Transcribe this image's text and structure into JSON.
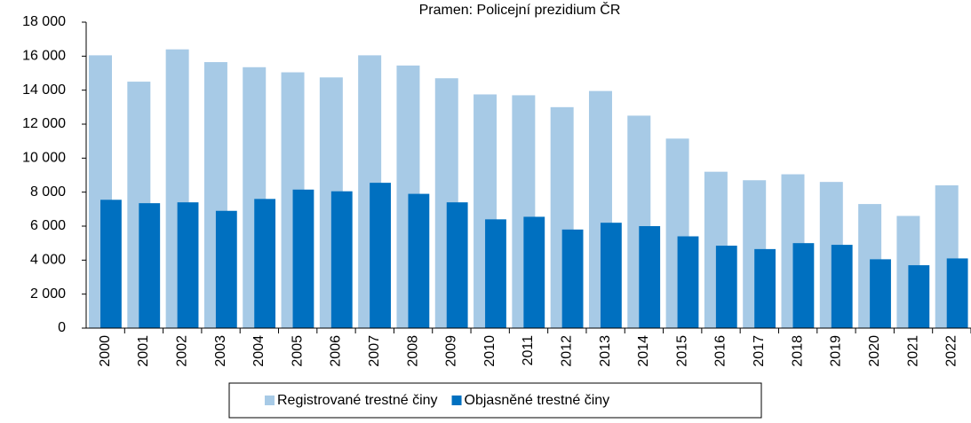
{
  "chart_data": {
    "type": "bar",
    "title": "Pramen: Policejní prezidium ČR",
    "categories": [
      "2000",
      "2001",
      "2002",
      "2003",
      "2004",
      "2005",
      "2006",
      "2007",
      "2008",
      "2009",
      "2010",
      "2011",
      "2012",
      "2013",
      "2014",
      "2015",
      "2016",
      "2017",
      "2018",
      "2019",
      "2020",
      "2021",
      "2022"
    ],
    "series": [
      {
        "name": "Registrované trestné činy",
        "color": "#a7cae6",
        "values": [
          16050,
          14500,
          16400,
          15650,
          15350,
          15050,
          14750,
          16050,
          15450,
          14700,
          13750,
          13700,
          13000,
          13950,
          12500,
          11150,
          9200,
          8700,
          9050,
          8600,
          7300,
          6600,
          8400
        ]
      },
      {
        "name": "Objasněné trestné činy",
        "color": "#0070c0",
        "values": [
          7550,
          7350,
          7400,
          6900,
          7600,
          8150,
          8050,
          8550,
          7900,
          7400,
          6400,
          6550,
          5800,
          6200,
          6000,
          5400,
          4850,
          4650,
          5000,
          4900,
          4050,
          3700,
          4100
        ]
      }
    ],
    "ylim": [
      0,
      18000
    ],
    "yticks": [
      0,
      {
        "value": 2000,
        "label": "2 000"
      },
      {
        "value": 4000,
        "label": "4 000"
      },
      {
        "value": 6000,
        "label": "6 000"
      },
      {
        "value": 8000,
        "label": "8 000"
      },
      {
        "value": 10000,
        "label": "10 000"
      },
      {
        "value": 12000,
        "label": "12 000"
      },
      {
        "value": 14000,
        "label": "14 000"
      },
      {
        "value": 16000,
        "label": "16 000"
      },
      {
        "value": 18000,
        "label": "18 000"
      }
    ],
    "legend": "bottom"
  }
}
